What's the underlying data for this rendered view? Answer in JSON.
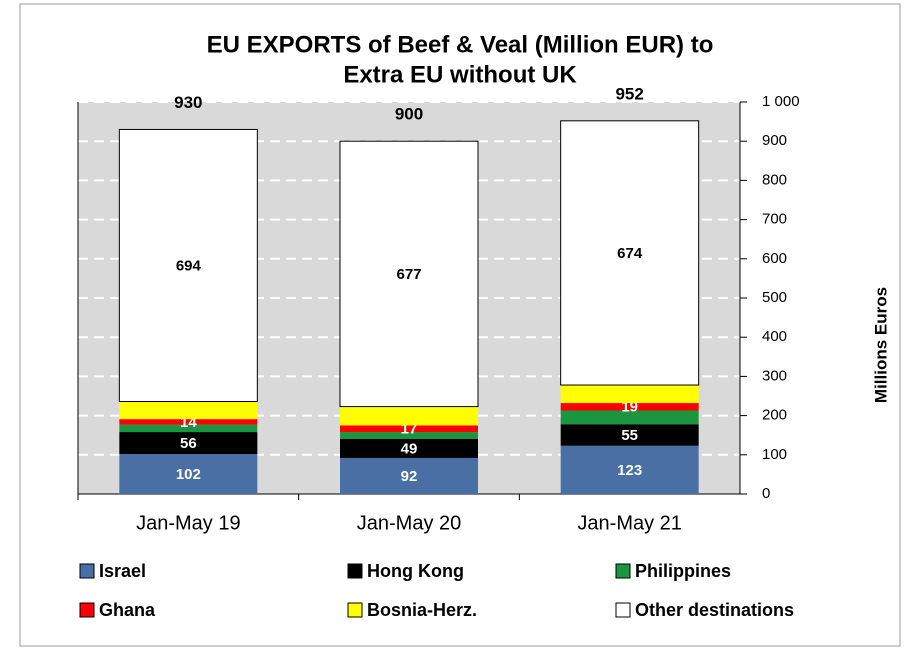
{
  "chart_data": {
    "type": "stacked_bar",
    "title": [
      "EU EXPORTS of Beef & Veal (Million EUR) to",
      "Extra EU without UK"
    ],
    "categories": [
      "Jan-May 19",
      "Jan-May 20",
      "Jan-May 21"
    ],
    "series": [
      {
        "name": "Israel",
        "color": "#4a6fa5",
        "label_color": "#ffffff",
        "data_labels": true,
        "values": [
          102,
          92,
          123
        ]
      },
      {
        "name": "Hong Kong",
        "color": "#000000",
        "label_color": "#ffffff",
        "data_labels": true,
        "values": [
          56,
          49,
          55
        ]
      },
      {
        "name": "Philippines",
        "color": "#1a9641",
        "label_color": "#ffffff",
        "data_labels": false,
        "values": [
          19,
          17,
          35
        ]
      },
      {
        "name": "Ghana",
        "color": "#ff0000",
        "label_color": "#ffffff",
        "data_labels": true,
        "values": [
          14,
          17,
          19
        ]
      },
      {
        "name": "Bosnia-Herz.",
        "color": "#ffff00",
        "label_color": "#000000",
        "data_labels": false,
        "values": [
          45,
          48,
          46
        ]
      },
      {
        "name": "Other destinations",
        "color": "#ffffff",
        "label_color": "#000000",
        "data_labels": true,
        "values": [
          694,
          677,
          674
        ]
      }
    ],
    "totals": [
      930,
      900,
      952
    ],
    "ylim": [
      0,
      1000
    ],
    "yticks": [
      0,
      100,
      200,
      300,
      400,
      500,
      600,
      700,
      800,
      900,
      {
        "value": 1000,
        "label": "1 000"
      }
    ],
    "y_label": "Millions Euros",
    "grid": true
  }
}
